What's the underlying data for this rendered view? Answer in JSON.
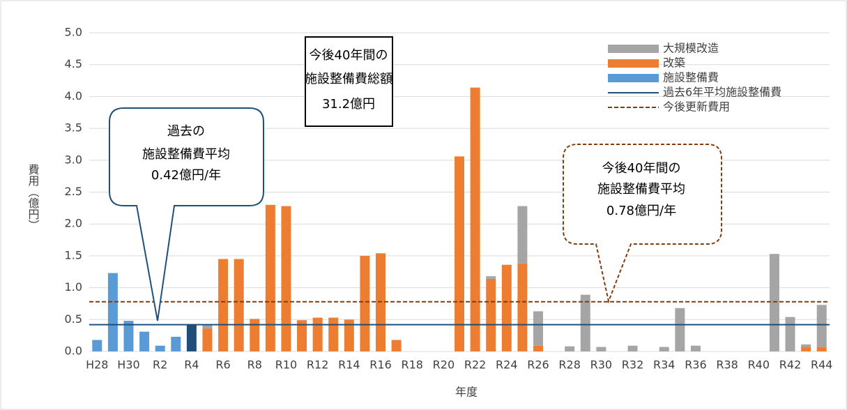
{
  "chart_data": {
    "type": "bar",
    "stacked": true,
    "x_label": "年度",
    "y_label": "費用（億円）",
    "categories": [
      "H28",
      null,
      "H30",
      null,
      "R2",
      null,
      "R4",
      null,
      "R6",
      null,
      "R8",
      null,
      "R10",
      null,
      "R12",
      null,
      "R14",
      null,
      "R16",
      null,
      "R18",
      null,
      "R20",
      null,
      "R22",
      null,
      "R24",
      null,
      "R26",
      null,
      "R28",
      null,
      "R30",
      null,
      "R32",
      null,
      "R34",
      null,
      "R36",
      null,
      "R38",
      null,
      "R40",
      null,
      "R42",
      null,
      "R44"
    ],
    "series": [
      {
        "name": "大規模改造",
        "color": "#a5a5a5",
        "values": [
          0,
          0,
          0,
          0,
          0,
          0,
          0,
          0.05,
          0,
          0,
          0,
          0,
          0,
          0,
          0,
          0,
          0,
          0,
          0,
          0,
          0,
          0,
          0,
          0,
          0,
          0.04,
          0,
          0.9,
          0.54,
          0,
          0.08,
          0.89,
          0.07,
          0,
          0.09,
          0,
          0.07,
          0.68,
          0.09,
          0,
          0,
          0,
          0,
          1.53,
          0.54,
          0.04,
          0.66
        ]
      },
      {
        "name": "改築",
        "color": "#ed7d31",
        "values": [
          0,
          0,
          0,
          0,
          0,
          0,
          0,
          0.36,
          1.45,
          1.45,
          0.51,
          2.3,
          2.28,
          0.49,
          0.53,
          0.53,
          0.5,
          1.5,
          1.54,
          0.18,
          0,
          0,
          0,
          3.06,
          4.14,
          1.14,
          1.36,
          1.38,
          0.09,
          0,
          0,
          0,
          0,
          0,
          0,
          0,
          0,
          0,
          0,
          0,
          0,
          0,
          0,
          0,
          0,
          0.07,
          0.07
        ]
      },
      {
        "name": "施設整備費",
        "color": "#5b9bd5",
        "values": [
          0.18,
          1.23,
          0.48,
          0.31,
          0.09,
          0.23,
          0.42,
          0,
          0,
          0,
          0,
          0,
          0,
          0,
          0,
          0,
          0,
          0,
          0,
          0,
          0,
          0,
          0,
          0,
          0,
          0,
          0,
          0,
          0,
          0,
          0,
          0,
          0,
          0,
          0,
          0,
          0,
          0,
          0,
          0,
          0,
          0,
          0,
          0,
          0,
          0,
          0
        ],
        "colors": [
          "#5b9bd5",
          "#5b9bd5",
          "#5b9bd5",
          "#5b9bd5",
          "#5b9bd5",
          "#5b9bd5",
          "#1f4e79",
          "#5b9bd5",
          "#5b9bd5",
          "#5b9bd5",
          "#5b9bd5",
          "#5b9bd5",
          "#5b9bd5",
          "#5b9bd5",
          "#5b9bd5",
          "#5b9bd5",
          "#5b9bd5",
          "#5b9bd5",
          "#5b9bd5",
          "#5b9bd5",
          "#5b9bd5",
          "#5b9bd5",
          "#5b9bd5",
          "#5b9bd5",
          "#5b9bd5",
          "#5b9bd5",
          "#5b9bd5",
          "#5b9bd5",
          "#5b9bd5",
          "#5b9bd5",
          "#5b9bd5",
          "#5b9bd5",
          "#5b9bd5",
          "#5b9bd5",
          "#5b9bd5",
          "#5b9bd5",
          "#5b9bd5",
          "#5b9bd5",
          "#5b9bd5",
          "#5b9bd5",
          "#5b9bd5",
          "#5b9bd5",
          "#5b9bd5",
          "#5b9bd5",
          "#5b9bd5",
          "#5b9bd5",
          "#5b9bd5"
        ]
      }
    ],
    "lines": [
      {
        "name": "過去6年平均施設整備費",
        "color": "#1f4e79",
        "value": 0.42,
        "dashed": false
      },
      {
        "name": "今後更新費用",
        "color": "#843c0c",
        "value": 0.78,
        "dashed": true
      }
    ],
    "ylim": [
      0,
      5
    ],
    "yticks": [
      {
        "value": 0,
        "label": "0.0"
      },
      0.5,
      {
        "value": 1,
        "label": "1.0"
      },
      1.5,
      {
        "value": 2,
        "label": "2.0"
      },
      2.5,
      {
        "value": 3,
        "label": "3.0"
      },
      3.5,
      {
        "value": 4,
        "label": "4.0"
      },
      4.5,
      {
        "value": 5,
        "label": "5.0"
      }
    ],
    "grid": true,
    "legend": "upper right",
    "annotations": [
      {
        "lines": [
          "今後40年間の",
          "施設整備費総額",
          "31.2億円"
        ]
      },
      {
        "lines": [
          "過去の",
          "施設整備費平均",
          "0.42億円/年"
        ]
      },
      {
        "lines": [
          "今後40年間の",
          "施設整備費平均",
          "0.78億円/年"
        ]
      }
    ]
  }
}
